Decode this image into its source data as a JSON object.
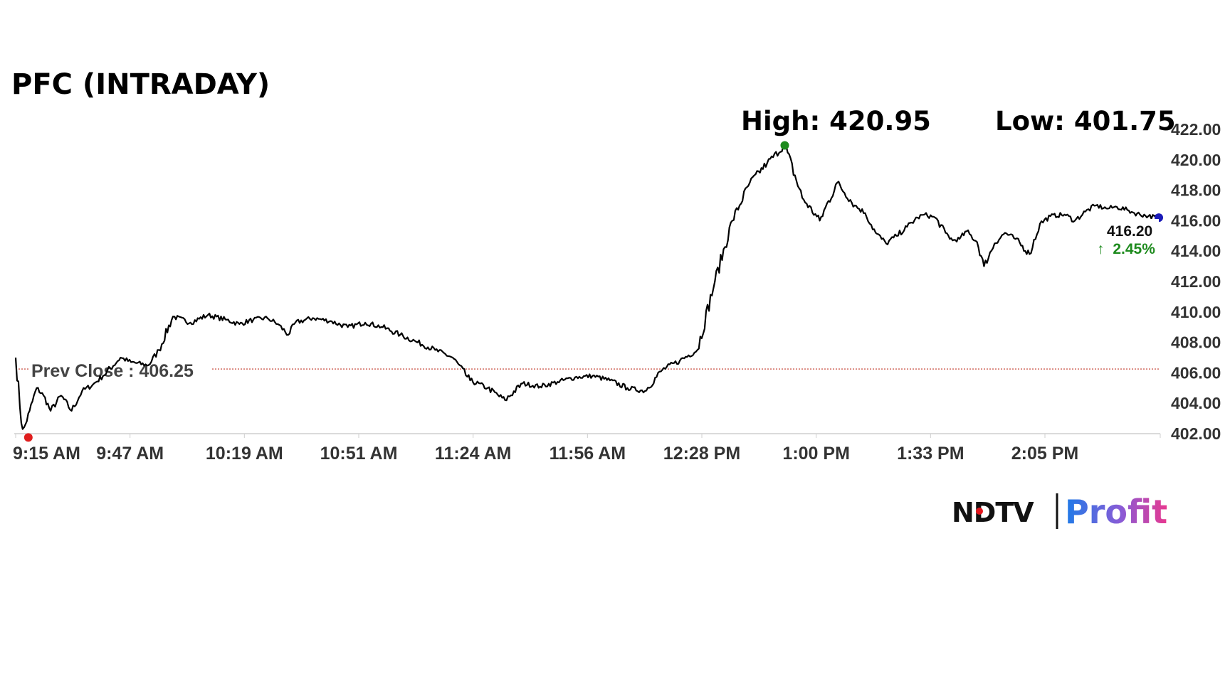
{
  "chart_data": {
    "type": "line",
    "title": "PFC (INTRADAY)",
    "high_label": "High: 420.95",
    "low_label": "Low: 401.75",
    "high": 420.95,
    "low": 401.75,
    "prev_close_label": "Prev Close : 406.25",
    "prev_close": 406.25,
    "last_price_label": "416.20",
    "last_price": 416.2,
    "change_label": "2.45%",
    "change_arrow": "↑",
    "x_tick_labels": [
      "9:15 AM",
      "9:47 AM",
      "10:19 AM",
      "10:51 AM",
      "11:24 AM",
      "11:56 AM",
      "12:28 PM",
      "1:00 PM",
      "1:33 PM",
      "2:05 PM"
    ],
    "y_tick_labels": [
      "422.00",
      "420.00",
      "418.00",
      "416.00",
      "414.00",
      "412.00",
      "410.00",
      "408.00",
      "406.00",
      "404.00",
      "402.00"
    ],
    "ylim": [
      402,
      422
    ],
    "xlim_minutes": [
      0,
      327
    ],
    "x_unit": "minutes after 9:15 AM",
    "series": [
      {
        "x": [
          0,
          2,
          4,
          6,
          8,
          10,
          13,
          16,
          19,
          22,
          25,
          30,
          33,
          38,
          41,
          45,
          50,
          55,
          60,
          64,
          68,
          72,
          75,
          78,
          80,
          85,
          90,
          95,
          100,
          105,
          110,
          115,
          120,
          125,
          130,
          135,
          140,
          145,
          150,
          155,
          160,
          165,
          170,
          175,
          180,
          185,
          190,
          195,
          200,
          205,
          210,
          215,
          220,
          225,
          230,
          235,
          240,
          243,
          246,
          249,
          252,
          255,
          258,
          260,
          263,
          266,
          268,
          270,
          272,
          275,
          277,
          280,
          283,
          286,
          290,
          293,
          296,
          300,
          303,
          306,
          309,
          312,
          315,
          318,
          320,
          324,
          327
        ],
        "values": [
          407,
          402,
          403.5,
          405,
          404.5,
          403.5,
          404.5,
          403.5,
          404.8,
          405.2,
          405.8,
          407,
          406.7,
          406.5,
          407.5,
          409.7,
          409.3,
          409.8,
          409.5,
          409.2,
          409.5,
          409.6,
          409.2,
          408.5,
          409.3,
          409.6,
          409.4,
          409.0,
          409.3,
          409.0,
          408.5,
          408.0,
          407.5,
          407.0,
          405.5,
          405.0,
          404.2,
          405.3,
          405.1,
          405.4,
          405.7,
          405.8,
          405.5,
          405.0,
          404.8,
          406.2,
          406.8,
          407.5,
          412.0,
          416.0,
          418.5,
          419.8,
          420.95,
          417.5,
          416.0,
          418.5,
          417.0,
          416.5,
          415.2,
          414.5,
          415.0,
          415.6,
          416.2,
          416.4,
          416.2,
          415.2,
          414.7,
          414.8,
          415.3,
          414.6,
          413.0,
          414.5,
          415.2,
          414.8,
          413.8,
          415.8,
          416.3,
          416.4,
          416.0,
          416.6,
          417.0,
          416.8,
          416.9,
          416.7,
          416.5,
          416.3,
          416.2
        ]
      }
    ]
  },
  "colors": {
    "line": "#000000",
    "prev_close_line": "#c0392b",
    "high_dot": "#1e8b1e",
    "low_dot": "#e01e1e",
    "last_dot": "#1a1ab8",
    "change_up": "#1e8b1e",
    "brand_dot": "#e3161d",
    "brand_grad_start": "#1f7be8",
    "brand_grad_mid": "#8a5bd6",
    "brand_grad_end": "#e8388f"
  },
  "brand": {
    "name1": "NDTV",
    "name2": "Profit"
  }
}
